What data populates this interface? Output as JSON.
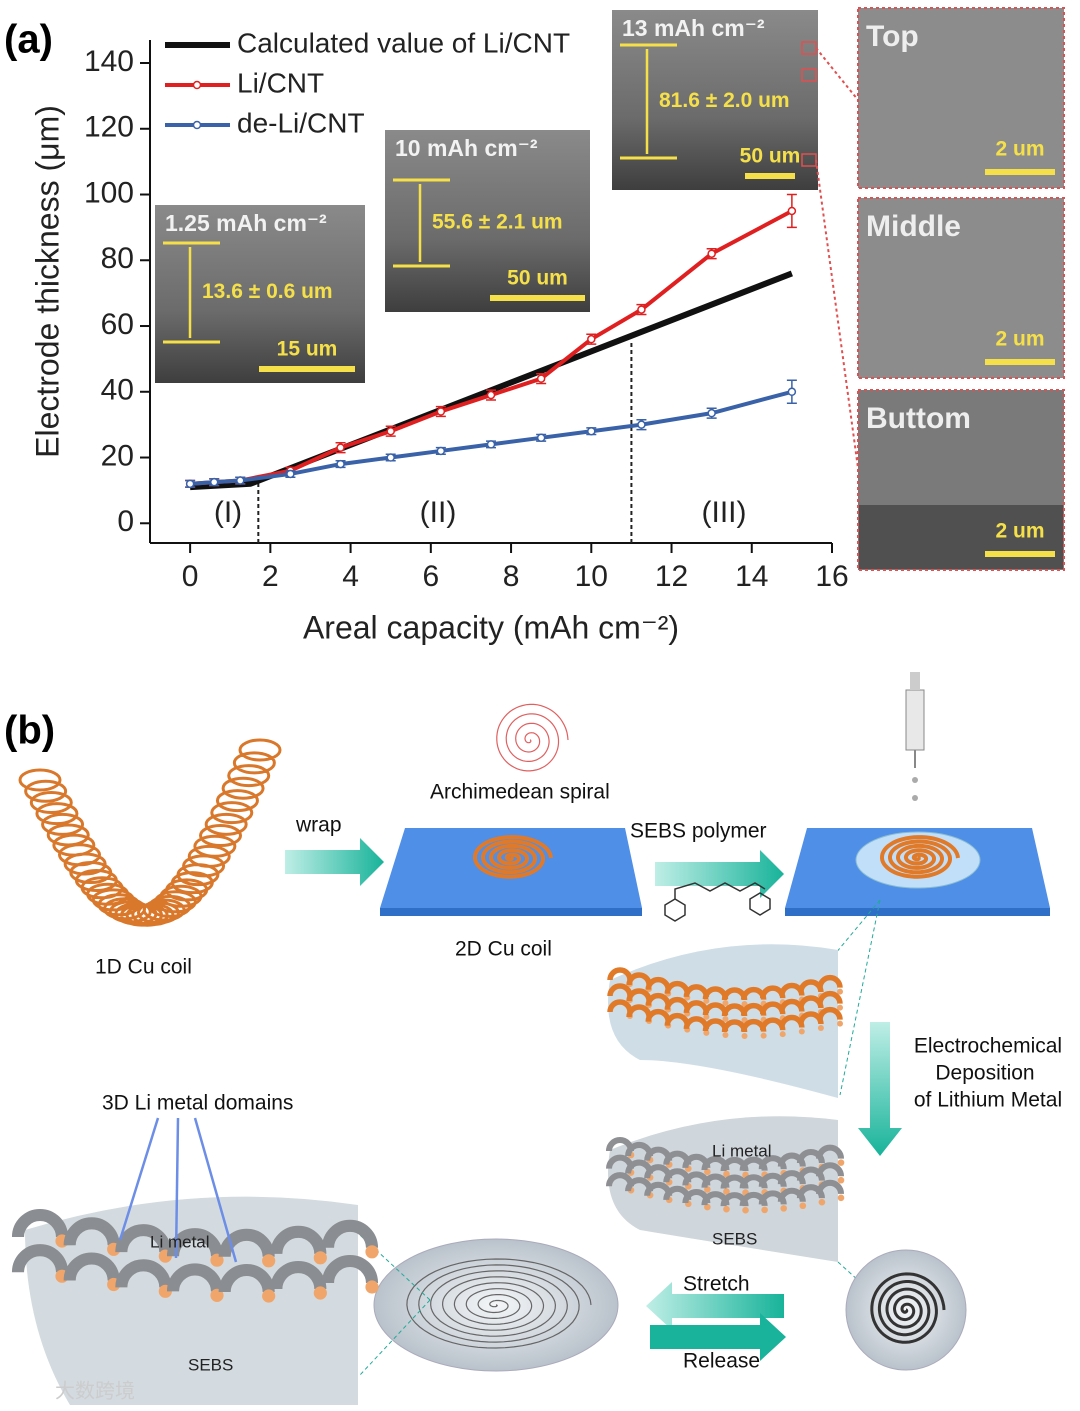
{
  "panel_labels": [
    "(a)",
    "(b)"
  ],
  "chart_data": {
    "type": "line",
    "xlabel": "Areal capacity (mAh cm⁻²)",
    "ylabel": "Electrode thickness (μm)",
    "xlim": [
      -1,
      16
    ],
    "ylim": [
      -6,
      147
    ],
    "xticks": [
      0,
      2,
      4,
      6,
      8,
      10,
      12,
      14,
      16
    ],
    "yticks": [
      0,
      20,
      40,
      60,
      80,
      100,
      120,
      140
    ],
    "legend": "upper left",
    "series": [
      {
        "name": "Calculated value of Li/CNT",
        "color": "#111111",
        "x": [
          0,
          1.5,
          15
        ],
        "values": [
          11,
          12,
          76
        ]
      },
      {
        "name": "Li/CNT",
        "color": "#e02020",
        "x": [
          0,
          0.6,
          1.25,
          2.5,
          3.75,
          5,
          6.25,
          7.5,
          8.75,
          10,
          11.25,
          13,
          15
        ],
        "values": [
          12,
          12.5,
          13,
          16,
          23,
          28,
          34,
          39,
          44,
          56,
          65,
          82,
          95
        ],
        "errors": [
          1,
          1,
          1,
          1,
          1.5,
          1.5,
          1.5,
          1.5,
          1.5,
          1.5,
          1.5,
          1.5,
          5
        ]
      },
      {
        "name": "de-Li/CNT",
        "color": "#3a62a8",
        "x": [
          0,
          0.6,
          1.25,
          2.5,
          3.75,
          5,
          6.25,
          7.5,
          8.75,
          10,
          11.25,
          13,
          15
        ],
        "values": [
          12,
          12.5,
          13,
          15,
          18,
          20,
          22,
          24,
          26,
          28,
          30,
          33.5,
          40
        ],
        "errors": [
          1,
          1,
          1,
          1,
          1,
          1,
          1,
          1,
          1,
          1,
          1.5,
          1.5,
          3.5
        ]
      }
    ],
    "region_bounds": [
      1.7,
      11
    ],
    "region_labels": [
      "(I)",
      "(II)",
      "(III)"
    ]
  },
  "insets": [
    {
      "title": "1.25 mAh cm⁻²",
      "thickness": "13.6 ± 0.6 um",
      "scale": "15 um"
    },
    {
      "title": "10 mAh cm⁻²",
      "thickness": "55.6 ± 2.1 um",
      "scale": "50 um"
    },
    {
      "title": "13 mAh cm⁻²",
      "thickness": "81.6 ± 2.0 um",
      "scale": "50 um"
    }
  ],
  "sem_panels": [
    {
      "label": "Top",
      "scale": "2 um"
    },
    {
      "label": "Middle",
      "scale": "2 um"
    },
    {
      "label": "Buttom",
      "scale": "2 um"
    }
  ],
  "diagram": {
    "wrap": "wrap",
    "spiral": "Archimedean spiral",
    "polymer": "SEBS polymer",
    "coil_1d": "1D Cu coil",
    "coil_2d": "2D Cu coil",
    "deposition": [
      "Electrochemical",
      "Deposition",
      "of Lithium Metal"
    ],
    "domains": "3D Li metal domains",
    "li_metal_a": "Li metal",
    "sebs_a": "SEBS",
    "li_metal_b": "Li metal",
    "sebs_b": "SEBS",
    "stretch": "Stretch",
    "release": "Release"
  },
  "watermark": "大数跨境"
}
